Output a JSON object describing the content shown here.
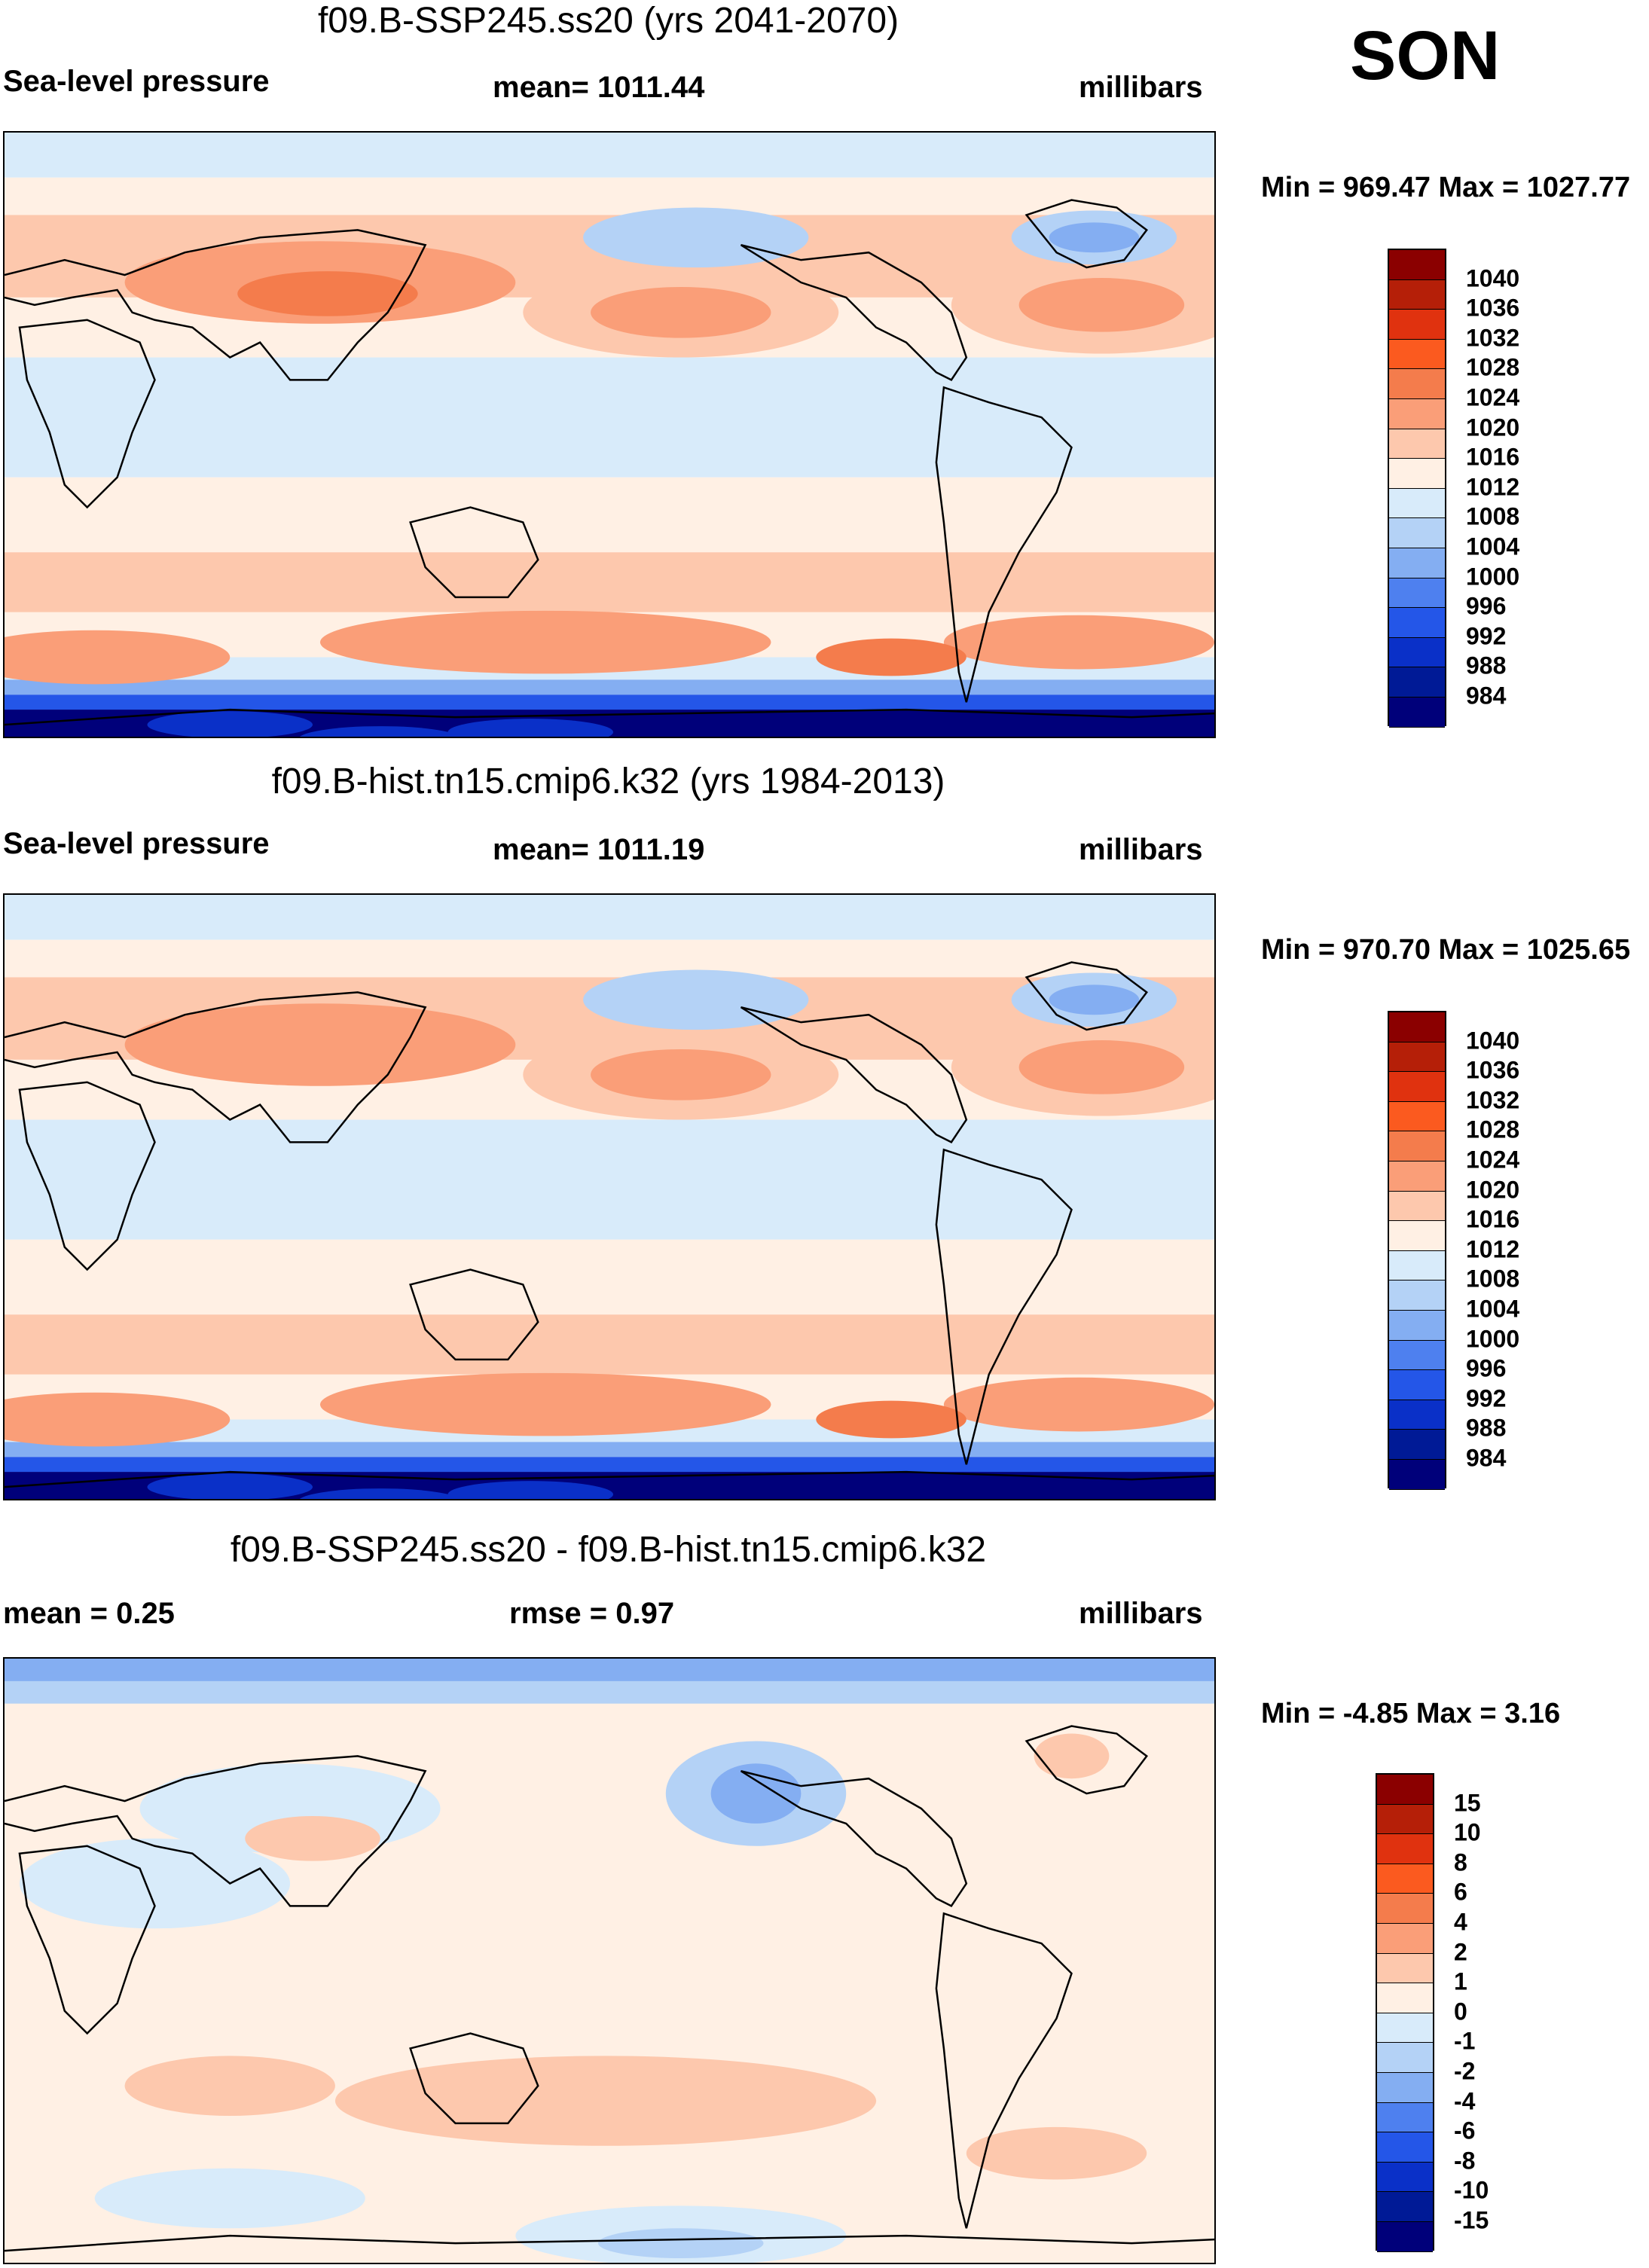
{
  "season": "SON",
  "panels": [
    {
      "title": "f09.B-SSP245.ss20 (yrs 2041-2070)",
      "left_label": "Sea-level pressure",
      "center_label": "mean= 1011.44",
      "right_label": "millibars",
      "minmax": "Min = 969.47 Max = 1027.77",
      "colorbar": {
        "labels": [
          "1040",
          "1036",
          "1032",
          "1028",
          "1024",
          "1020",
          "1016",
          "1012",
          "1008",
          "1004",
          "1000",
          "996",
          "992",
          "988",
          "984"
        ],
        "colors": [
          "#8b0000",
          "#b51f08",
          "#e0320f",
          "#fb5a1f",
          "#f47c4c",
          "#fa9e78",
          "#fdc8ad",
          "#fff0e4",
          "#d8ebfa",
          "#b4d2f6",
          "#84aef2",
          "#4e80ef",
          "#2456e8",
          "#0a30c8",
          "#001a96",
          "#00007a"
        ]
      },
      "map_kind": "abs_future"
    },
    {
      "title": "f09.B-hist.tn15.cmip6.k32 (yrs 1984-2013)",
      "left_label": "Sea-level pressure",
      "center_label": "mean= 1011.19",
      "right_label": "millibars",
      "minmax": "Min = 970.70 Max = 1025.65",
      "colorbar": {
        "labels": [
          "1040",
          "1036",
          "1032",
          "1028",
          "1024",
          "1020",
          "1016",
          "1012",
          "1008",
          "1004",
          "1000",
          "996",
          "992",
          "988",
          "984"
        ],
        "colors": [
          "#8b0000",
          "#b51f08",
          "#e0320f",
          "#fb5a1f",
          "#f47c4c",
          "#fa9e78",
          "#fdc8ad",
          "#fff0e4",
          "#d8ebfa",
          "#b4d2f6",
          "#84aef2",
          "#4e80ef",
          "#2456e8",
          "#0a30c8",
          "#001a96",
          "#00007a"
        ]
      },
      "map_kind": "abs_hist"
    },
    {
      "title": "f09.B-SSP245.ss20 - f09.B-hist.tn15.cmip6.k32",
      "left_label": "mean =   0.25",
      "center_label": "rmse =   0.97",
      "right_label": "millibars",
      "minmax": "Min =  -4.85 Max =   3.16",
      "colorbar": {
        "labels": [
          "15",
          "10",
          "8",
          "6",
          "4",
          "2",
          "1",
          "0",
          "-1",
          "-2",
          "-4",
          "-6",
          "-8",
          "-10",
          "-15"
        ],
        "colors": [
          "#8b0000",
          "#b51f08",
          "#e0320f",
          "#fb5a1f",
          "#f47c4c",
          "#fa9e78",
          "#fdc8ad",
          "#fff0e4",
          "#d8ebfa",
          "#b4d2f6",
          "#84aef2",
          "#4e80ef",
          "#2456e8",
          "#0a30c8",
          "#001a96",
          "#00007a"
        ]
      },
      "map_kind": "diff"
    }
  ]
}
